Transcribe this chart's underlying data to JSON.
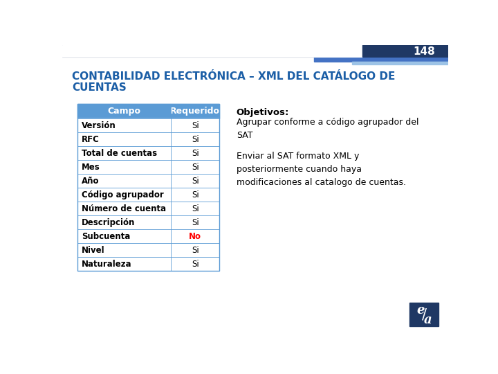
{
  "slide_number": "148",
  "title_line1": "CONTABILIDAD ELECTRÓNICA – XML DEL CATÁLOGO DE",
  "title_line2": "CUENTAS",
  "title_color": "#1B5EA6",
  "background_color": "#FFFFFF",
  "header_bar_color": "#5B9BD5",
  "header_text_color": "#FFFFFF",
  "col1_header": "Campo",
  "col2_header": "Requerido",
  "rows": [
    {
      "campo": "Versión",
      "requerido": "Si",
      "req_color": "#000000"
    },
    {
      "campo": "RFC",
      "requerido": "Si",
      "req_color": "#000000"
    },
    {
      "campo": "Total de cuentas",
      "requerido": "Si",
      "req_color": "#000000"
    },
    {
      "campo": "Mes",
      "requerido": "Si",
      "req_color": "#000000"
    },
    {
      "campo": "Año",
      "requerido": "Si",
      "req_color": "#000000"
    },
    {
      "campo": "Código agrupador",
      "requerido": "Si",
      "req_color": "#000000"
    },
    {
      "campo": "Número de cuenta",
      "requerido": "Si",
      "req_color": "#000000"
    },
    {
      "campo": "Descripción",
      "requerido": "Si",
      "req_color": "#000000"
    },
    {
      "campo": "Subcuenta",
      "requerido": "No",
      "req_color": "#FF0000"
    },
    {
      "campo": "Nivel",
      "requerido": "Si",
      "req_color": "#000000"
    },
    {
      "campo": "Naturaleza",
      "requerido": "Si",
      "req_color": "#000000"
    }
  ],
  "table_border_color": "#5B9BD5",
  "objectives_title": "Objetivos:",
  "objective1": "Agrupar conforme a código agrupador del\nSAT",
  "objective2": "Enviar al SAT formato XML y\nposteriormente cuando haya\nmodificaciones al catalogo de cuentas.",
  "top_bar_dark": "#1F3864",
  "top_bar_mid": "#4472C4",
  "top_bar_light": "#9DC3E6",
  "logo_bg_color": "#1F3864",
  "slide_num_color": "#FFFFFF"
}
